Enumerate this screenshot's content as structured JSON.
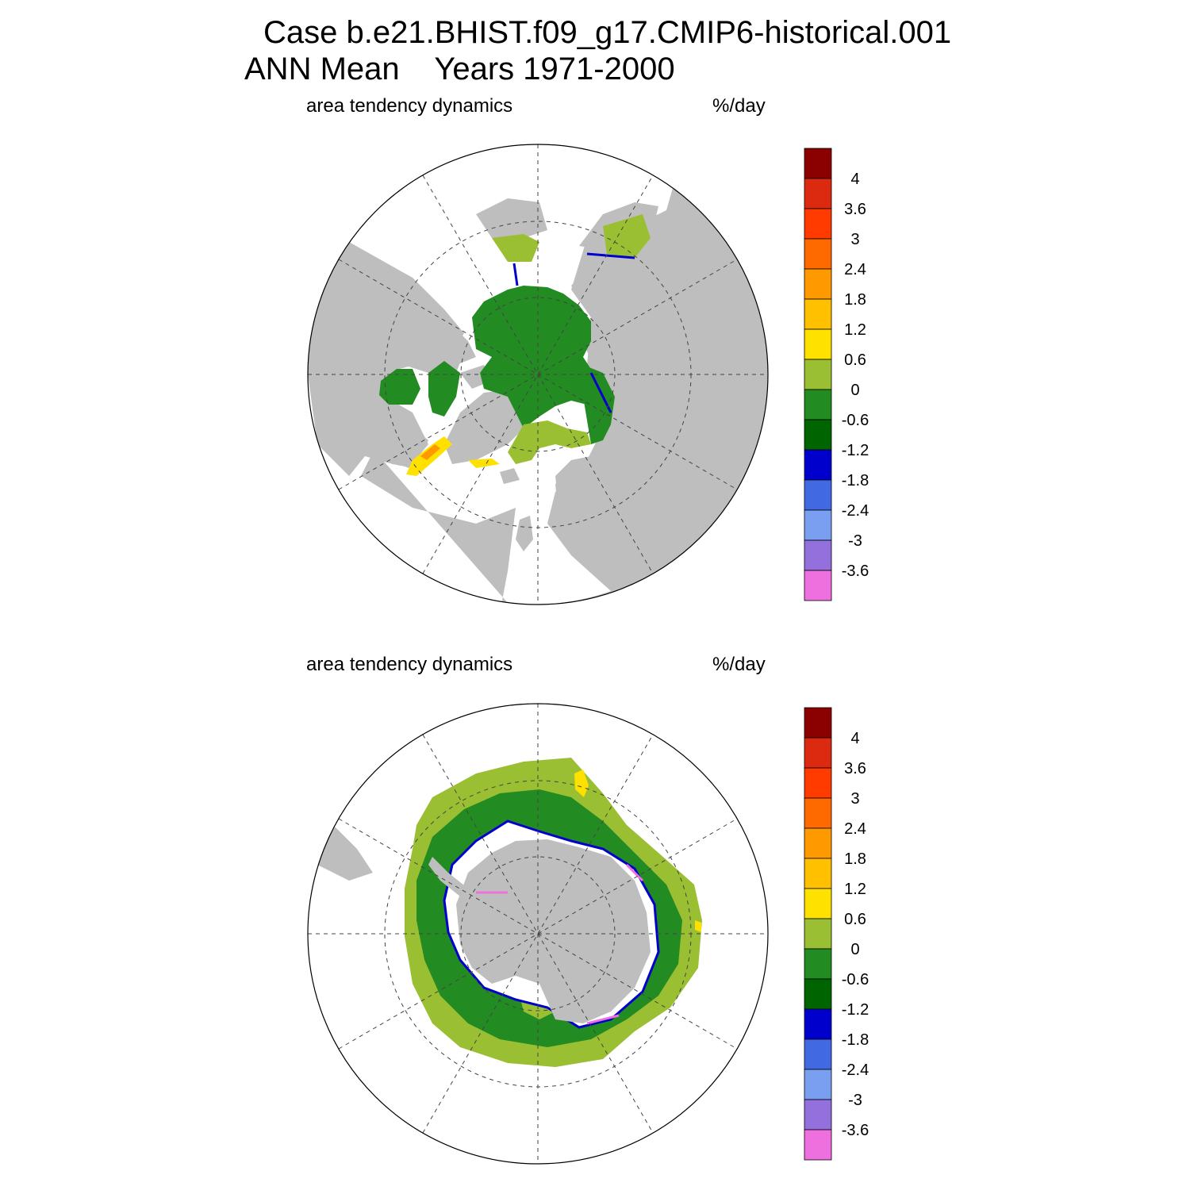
{
  "header": {
    "line1": "Case b.e21.BHIST.f09_g17.CMIP6-historical.001",
    "line2": "ANN Mean    Years 1971-2000"
  },
  "panels": [
    {
      "id": "arctic",
      "variable_label": "area tendency dynamics",
      "units": "%/day"
    },
    {
      "id": "antarctic",
      "variable_label": "area tendency dynamics",
      "units": "%/day"
    }
  ],
  "colorbar": {
    "levels": [
      "4",
      "3.6",
      "3",
      "2.4",
      "1.8",
      "1.2",
      "0.6",
      "0",
      "-0.6",
      "-1.2",
      "-1.8",
      "-2.4",
      "-3",
      "-3.6"
    ],
    "colors": [
      "#8b0000",
      "#dc2a10",
      "#ff3b00",
      "#ff6a00",
      "#ff9900",
      "#ffc000",
      "#ffe100",
      "#9abf32",
      "#228b22",
      "#006400",
      "#0000cd",
      "#4169e1",
      "#7b9ff0",
      "#9370db",
      "#ee6fde"
    ]
  },
  "map_colors": {
    "land": "#bebebe",
    "ocean_no_ice": "#ffffff"
  }
}
